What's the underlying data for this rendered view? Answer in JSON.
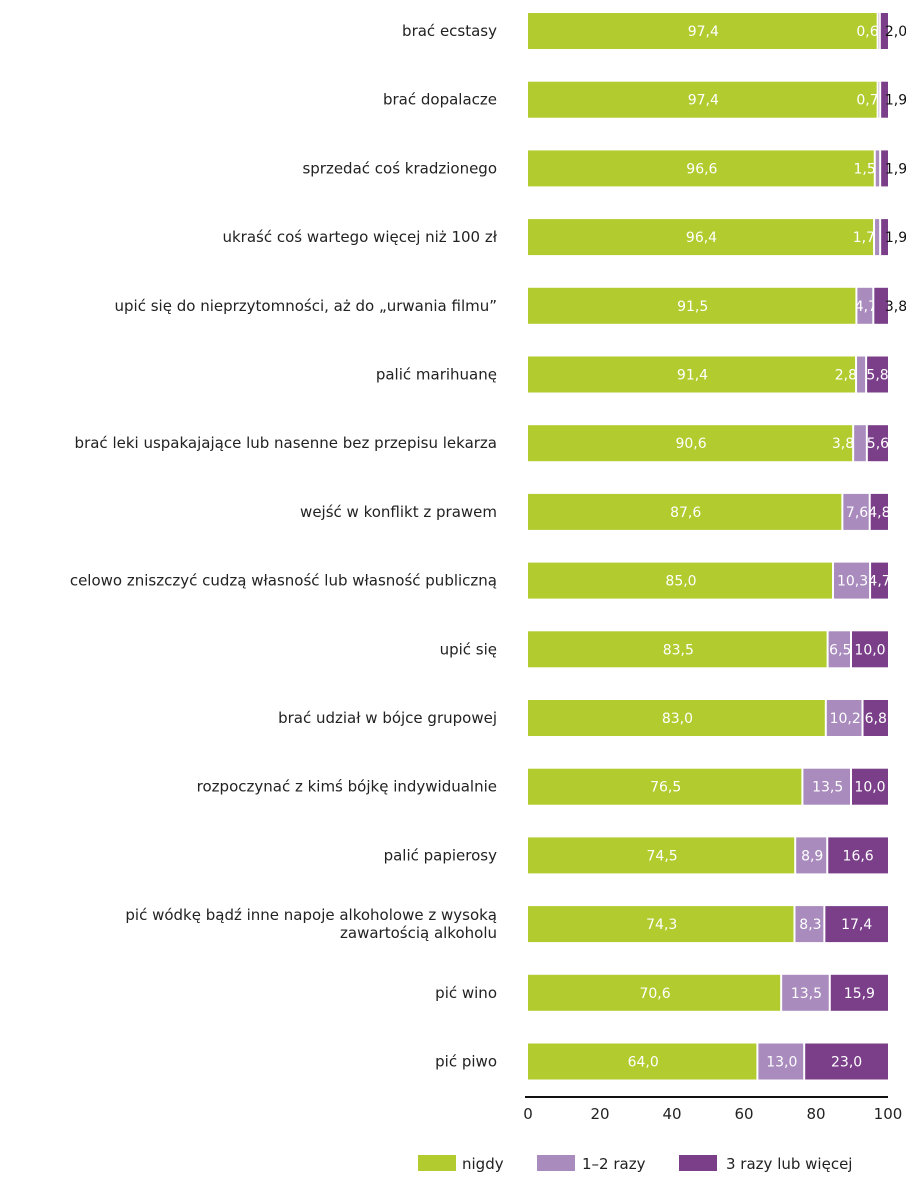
{
  "chart_data": {
    "type": "bar",
    "orientation": "horizontal",
    "stacked": true,
    "categories": [
      "brać ecstasy",
      "brać dopalacze",
      "sprzedać coś kradzionego",
      "ukraść coś wartego więcej niż 100 zł",
      "upić się do nieprzytomności, aż do „urwania filmu”",
      "palić marihuanę",
      "brać leki uspakajające lub nasenne bez przepisu lekarza",
      "wejść w konflikt z prawem",
      "celowo zniszczyć cudzą własność lub własność publiczną",
      "upić się",
      "brać udział w bójce grupowej",
      "rozpoczynać z kimś bójkę indywidualnie",
      "palić papierosy",
      "pić wódkę bądź inne napoje alkoholowe z wysoką zawartością alkoholu",
      "pić wino",
      "pić piwo"
    ],
    "category_lines": [
      [
        "brać ecstasy"
      ],
      [
        "brać dopalacze"
      ],
      [
        "sprzedać coś kradzionego"
      ],
      [
        "ukraść coś wartego więcej niż 100 zł"
      ],
      [
        "upić się do nieprzytomności, aż do „urwania filmu”"
      ],
      [
        "palić marihuanę"
      ],
      [
        "brać leki uspakajające lub nasenne bez przepisu lekarza"
      ],
      [
        "wejść w konflikt z prawem"
      ],
      [
        "celowo zniszczyć cudzą własność lub własność publiczną"
      ],
      [
        "upić się"
      ],
      [
        "brać udział w bójce grupowej"
      ],
      [
        "rozpoczynać z kimś bójkę indywidualnie"
      ],
      [
        "palić papierosy"
      ],
      [
        "pić wódkę bądź inne napoje alkoholowe z wysoką",
        "zawartością alkoholu"
      ],
      [
        "pić wino"
      ],
      [
        "pić piwo"
      ]
    ],
    "series": [
      {
        "name": "nigdy",
        "color": "#b2cb2e",
        "values": [
          97.4,
          97.4,
          96.6,
          96.4,
          91.5,
          91.4,
          90.6,
          87.6,
          85.0,
          83.5,
          83.0,
          76.5,
          74.5,
          74.3,
          70.6,
          64.0
        ],
        "labels": [
          "97,4",
          "97,4",
          "96,6",
          "96,4",
          "91,5",
          "91,4",
          "90,6",
          "87,6",
          "85,0",
          "83,5",
          "83,0",
          "76,5",
          "74,5",
          "74,3",
          "70,6",
          "64,0"
        ]
      },
      {
        "name": "1–2 razy",
        "color": "#a98bbd",
        "values": [
          0.6,
          0.7,
          1.5,
          1.7,
          4.7,
          2.8,
          3.8,
          7.6,
          10.3,
          6.5,
          10.2,
          13.5,
          8.9,
          8.3,
          13.5,
          13.0
        ],
        "labels": [
          "0,6",
          "0,7",
          "1,5",
          "1,7",
          "4,7",
          "2,8",
          "3,8",
          "7,6",
          "10,3",
          "6,5",
          "10,2",
          "13,5",
          "8,9",
          "8,3",
          "13,5",
          "13,0"
        ]
      },
      {
        "name": "3 razy lub więcej",
        "color": "#7b3f8a",
        "values": [
          2.0,
          1.9,
          1.9,
          1.9,
          3.8,
          5.8,
          5.6,
          4.8,
          4.7,
          10.0,
          6.8,
          10.0,
          16.6,
          17.4,
          15.9,
          23.0
        ],
        "labels": [
          "2,0",
          "1,9",
          "1,9",
          "1,9",
          "3,8",
          "5,8",
          "5,6",
          "4,8",
          "4,7",
          "10,0",
          "6,8",
          "10,0",
          "16,6",
          "17,4",
          "15,9",
          "23,0"
        ]
      }
    ],
    "xlim": [
      0,
      100
    ],
    "xticks": [
      0,
      20,
      40,
      60,
      80,
      100
    ],
    "xtick_labels": [
      "0",
      "20",
      "40",
      "60",
      "80",
      "100"
    ],
    "legend_position": "bottom-right",
    "grid": false
  }
}
